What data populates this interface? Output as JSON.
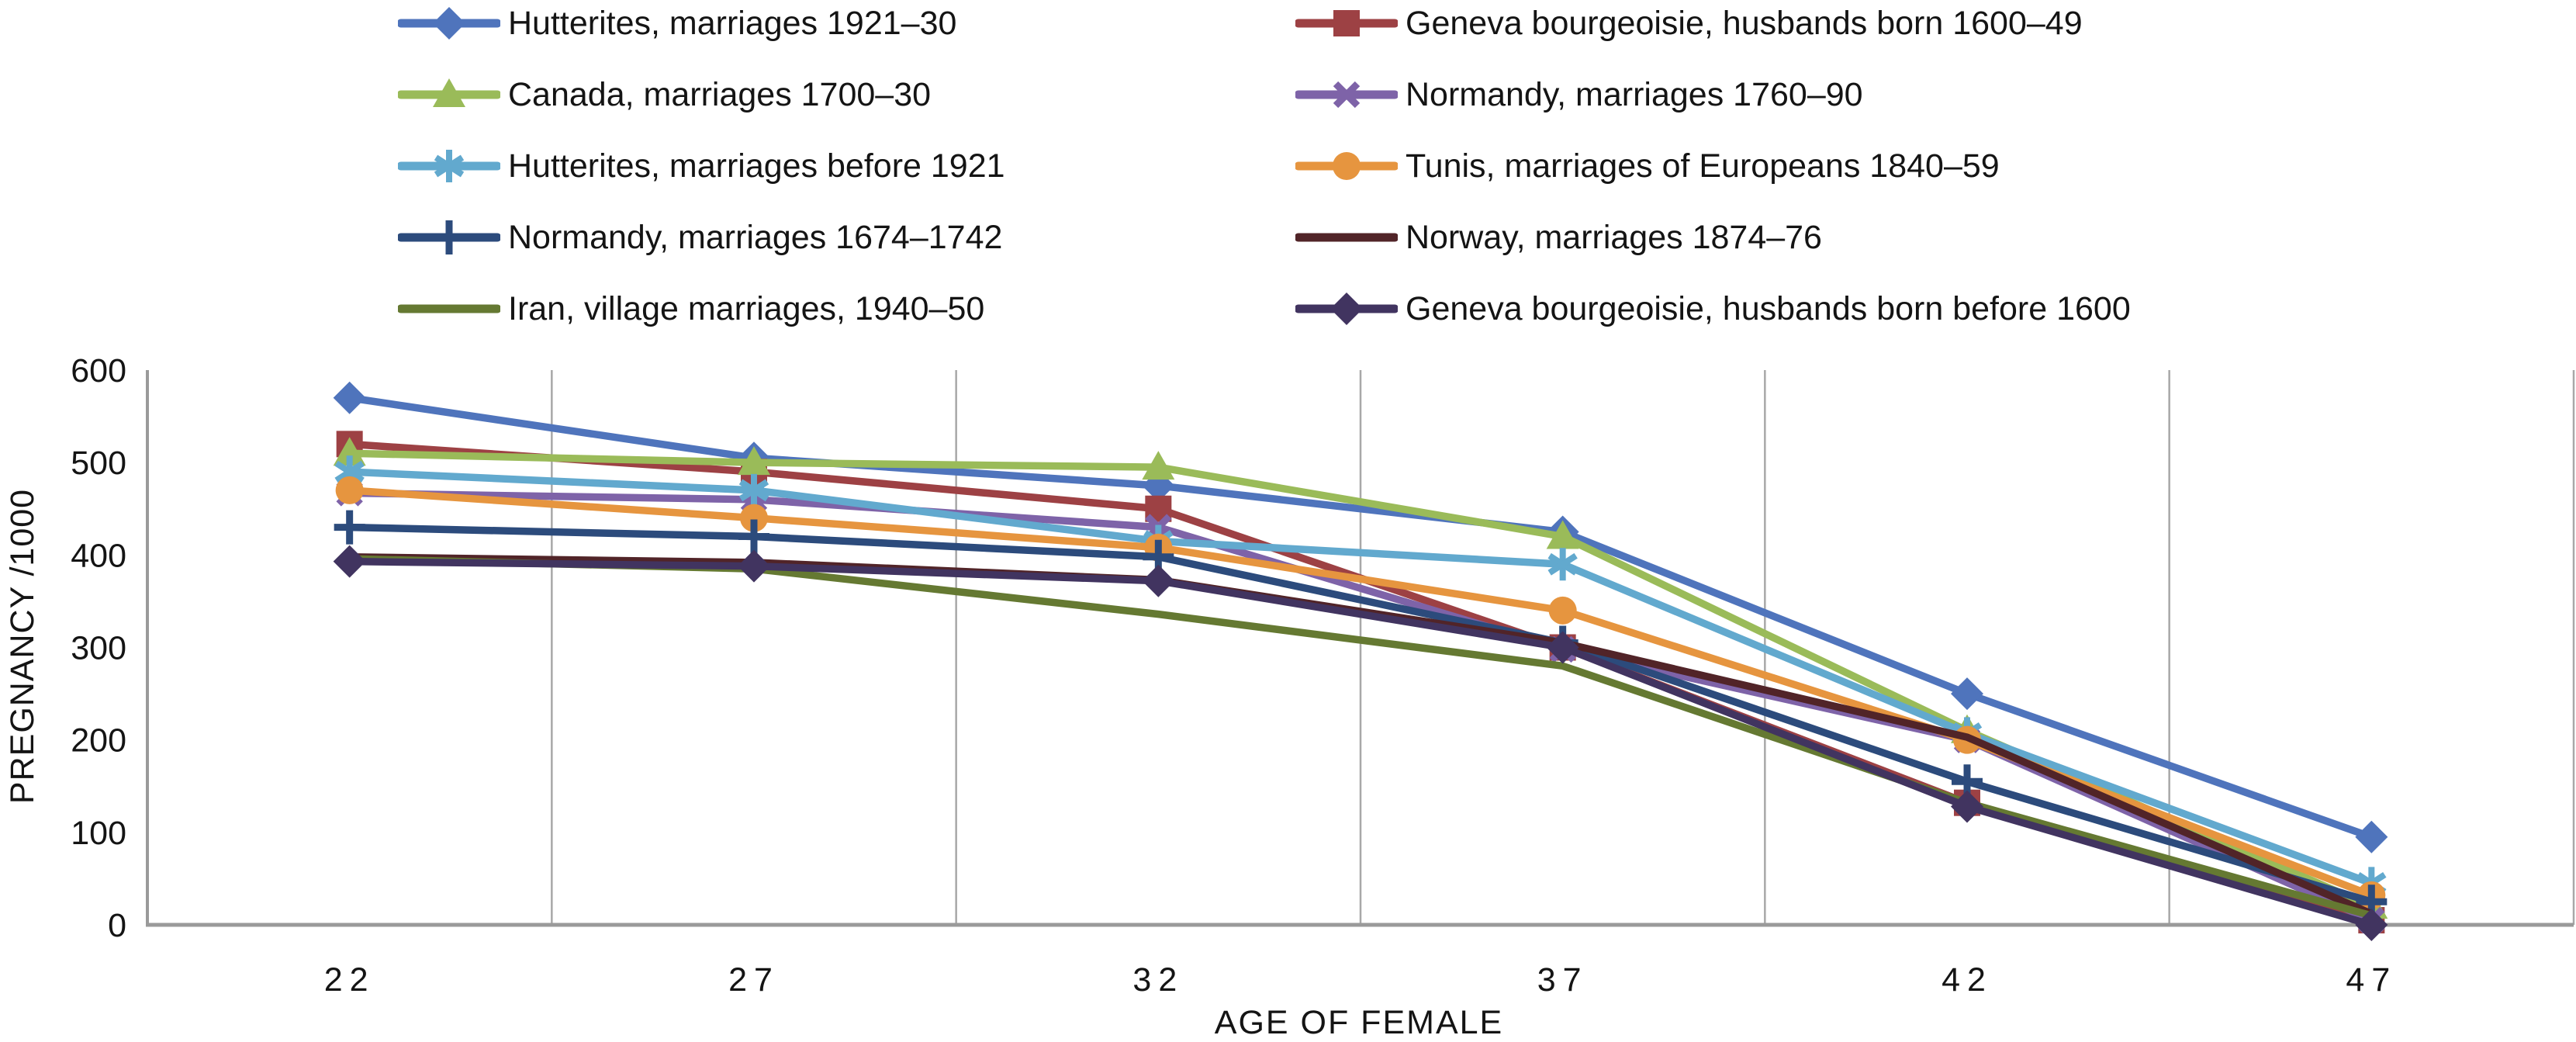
{
  "chart_data": {
    "type": "line",
    "title": "",
    "xlabel": "AGE OF FEMALE",
    "ylabel": "PREGNANCY /1000",
    "x_tick_labels": [
      "22",
      "27",
      "32",
      "37",
      "42",
      "47"
    ],
    "x": [
      22,
      27,
      32,
      37,
      42,
      47
    ],
    "y_ticks": [
      0,
      100,
      200,
      300,
      400,
      500,
      600
    ],
    "ylim": [
      0,
      600
    ],
    "grid": "vertical-gridlines-at-category-boundaries",
    "legend_position": "top-two-columns",
    "axis_color": "#9a9a9a",
    "gridline_color": "#a8a8a8",
    "text_color": "#141414",
    "series": [
      {
        "name": "Hutterites, marriages 1921–30",
        "color": "#4F74BC",
        "marker": "diamond",
        "legend_column": "left",
        "values": [
          570,
          505,
          475,
          425,
          250,
          95
        ]
      },
      {
        "name": "Geneva bourgeoisie, husbands born 1600–49",
        "color": "#9D4144",
        "marker": "square",
        "legend_column": "right",
        "values": [
          520,
          490,
          450,
          300,
          132,
          5
        ]
      },
      {
        "name": "Canada, marriages 1700–30",
        "color": "#9ABB59",
        "marker": "triangle",
        "legend_column": "left",
        "values": [
          510,
          500,
          495,
          420,
          210,
          20
        ]
      },
      {
        "name": "Normandy, marriages 1760–90",
        "color": "#7E63A8",
        "marker": "x",
        "legend_column": "right",
        "values": [
          467,
          460,
          430,
          298,
          200,
          5
        ]
      },
      {
        "name": "Hutterites, marriages before 1921",
        "color": "#62A9CE",
        "marker": "asterisk",
        "legend_column": "left",
        "values": [
          490,
          470,
          415,
          390,
          207,
          45
        ]
      },
      {
        "name": "Tunis, marriages of Europeans 1840–59",
        "color": "#E6953F",
        "marker": "circle",
        "legend_column": "right",
        "values": [
          470,
          440,
          408,
          340,
          200,
          32
        ]
      },
      {
        "name": "Normandy, marriages 1674–1742",
        "color": "#2C4B7C",
        "marker": "plus",
        "legend_column": "left",
        "values": [
          430,
          420,
          398,
          305,
          155,
          25
        ]
      },
      {
        "name": "Norway, marriages 1874–76",
        "color": "#512428",
        "marker": "none",
        "legend_column": "right",
        "values": [
          398,
          392,
          373,
          305,
          203,
          12
        ]
      },
      {
        "name": "Iran, village marriages, 1940–50",
        "color": "#657932",
        "marker": "none",
        "legend_column": "left",
        "values": [
          396,
          385,
          336,
          280,
          132,
          10
        ]
      },
      {
        "name": "Geneva bourgeoisie, husbands born before 1600",
        "color": "#413460",
        "marker": "diamond",
        "legend_column": "right",
        "values": [
          393,
          388,
          372,
          300,
          128,
          0
        ]
      }
    ]
  }
}
